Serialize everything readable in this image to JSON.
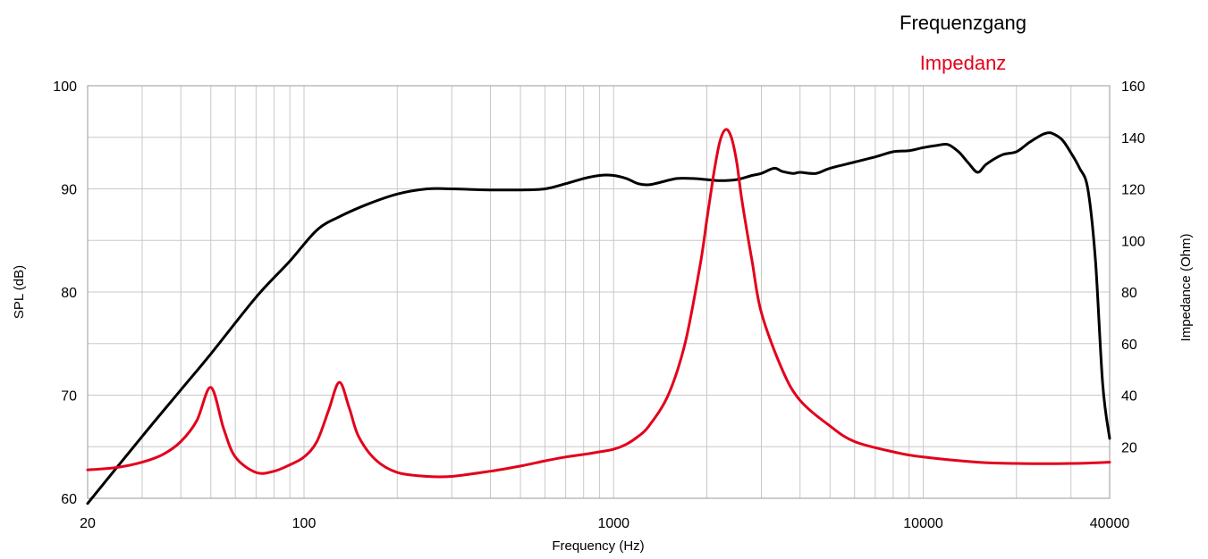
{
  "chart_data": {
    "type": "line",
    "xlabel": "Frequency (Hz)",
    "ylabel_left": "SPL (dB)",
    "ylabel_right": "Impedance (Ohm)",
    "x_scale": "log",
    "xlim": [
      20,
      40000
    ],
    "ylim_left": [
      60,
      100
    ],
    "ylim_right": [
      0,
      160
    ],
    "x_ticks": [
      "20",
      "100",
      "1000",
      "10000",
      "40000"
    ],
    "x_tick_values": [
      20,
      100,
      1000,
      10000,
      40000
    ],
    "y_ticks_left": [
      "60",
      "70",
      "80",
      "90",
      "100"
    ],
    "y_tick_values_left": [
      60,
      70,
      80,
      90,
      100
    ],
    "y_ticks_right": [
      "20",
      "40",
      "60",
      "80",
      "100",
      "120",
      "140",
      "160"
    ],
    "y_tick_values_right": [
      20,
      40,
      60,
      80,
      100,
      120,
      140,
      160
    ],
    "grid": true,
    "legend_position": "top-right",
    "series": [
      {
        "name": "Frequenzgang",
        "color": "#000000",
        "axis": "left",
        "x": [
          20,
          30,
          40,
          50,
          70,
          90,
          110,
          130,
          160,
          200,
          250,
          300,
          400,
          500,
          600,
          700,
          800,
          900,
          1000,
          1100,
          1200,
          1300,
          1400,
          1600,
          1800,
          2000,
          2200,
          2500,
          2800,
          3000,
          3300,
          3500,
          3800,
          4000,
          4500,
          5000,
          6000,
          7000,
          8000,
          9000,
          10000,
          11000,
          12000,
          13000,
          14000,
          15000,
          16000,
          18000,
          20000,
          22000,
          24000,
          25000,
          26000,
          28000,
          30000,
          32000,
          34000,
          36000,
          38000,
          40000
        ],
        "y": [
          59.5,
          66.0,
          70.5,
          74.0,
          79.5,
          83.0,
          86.0,
          87.3,
          88.5,
          89.5,
          90.0,
          90.0,
          89.9,
          89.9,
          90.0,
          90.5,
          91.0,
          91.3,
          91.3,
          91.0,
          90.5,
          90.4,
          90.6,
          91.0,
          91.0,
          90.9,
          90.8,
          90.9,
          91.3,
          91.5,
          92.0,
          91.7,
          91.5,
          91.6,
          91.5,
          92.0,
          92.6,
          93.1,
          93.6,
          93.7,
          94.0,
          94.2,
          94.3,
          93.6,
          92.5,
          91.6,
          92.4,
          93.3,
          93.6,
          94.5,
          95.2,
          95.4,
          95.4,
          94.8,
          93.5,
          92.0,
          90.0,
          83.0,
          71.0,
          65.8
        ]
      },
      {
        "name": "Impedanz",
        "color": "#e3001b",
        "axis": "right",
        "x": [
          20,
          25,
          30,
          35,
          40,
          45,
          50,
          55,
          60,
          70,
          80,
          90,
          100,
          110,
          120,
          130,
          140,
          150,
          170,
          200,
          250,
          300,
          400,
          500,
          600,
          700,
          800,
          900,
          1000,
          1100,
          1200,
          1300,
          1500,
          1700,
          1900,
          2000,
          2100,
          2200,
          2300,
          2400,
          2500,
          2600,
          2800,
          3000,
          3500,
          4000,
          5000,
          6000,
          8000,
          10000,
          15000,
          20000,
          30000,
          40000
        ],
        "y": [
          11,
          12,
          14,
          17,
          22,
          30,
          43,
          27,
          16,
          10,
          10.5,
          13,
          16,
          22,
          34,
          45,
          35,
          24,
          15,
          10,
          8.5,
          8.5,
          10.5,
          12.5,
          14.5,
          16,
          17,
          18,
          19,
          21,
          24,
          28,
          40,
          60,
          90,
          108,
          125,
          138,
          143,
          140,
          130,
          115,
          92,
          72,
          50,
          38,
          28,
          22,
          18,
          16,
          14,
          13.5,
          13.5,
          14
        ]
      }
    ]
  }
}
